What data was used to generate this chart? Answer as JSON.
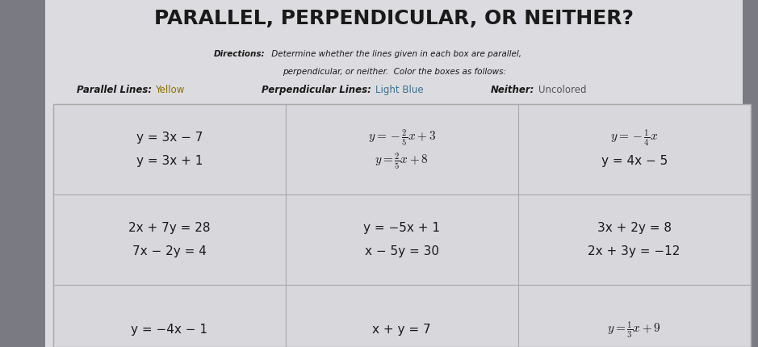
{
  "title": "PARALLEL, PERPENDICULAR, OR NEITHER?",
  "directions_bold": "Directions:",
  "directions_rest": " Determine whether the lines given in each box are parallel,",
  "directions_line2": "perpendicular, or neither.  Color the boxes as follows:",
  "bg_color": "#7a7a82",
  "paper_color": "#dcdce0",
  "cell_color_default": "#d8d8dc",
  "legend_parallel_label": "Parallel Lines:",
  "legend_parallel_val": " Yellow",
  "legend_perp_label": "Perpendicular Lines:",
  "legend_perp_val": " Light Blue",
  "legend_neither_label": "Neither:",
  "legend_neither_val": " Uncolored",
  "cells": [
    {
      "row": 0,
      "col": 0,
      "line1": "y = 3x − 7",
      "line2": "y = 3x + 1",
      "color": "#d8d8dc",
      "underline1": true,
      "underline2": true
    },
    {
      "row": 0,
      "col": 1,
      "line1": "$y = -\\frac{2}{5}x + 3$",
      "line2": "$y = \\frac{2}{5}x + 8$",
      "color": "#d8d8dc",
      "underline1": false,
      "underline2": false
    },
    {
      "row": 0,
      "col": 2,
      "line1": "$y = -\\frac{1}{4}x$",
      "line2": "y = 4x − 5",
      "color": "#d8d8dc",
      "underline1": false,
      "underline2": false
    },
    {
      "row": 1,
      "col": 0,
      "line1": "2x + 7y = 28",
      "line2": "7x − 2y = 4",
      "color": "#d8d8dc",
      "underline1": false,
      "underline2": false
    },
    {
      "row": 1,
      "col": 1,
      "line1": "y = −5x + 1",
      "line2": "x − 5y = 30",
      "color": "#d8d8dc",
      "underline1": false,
      "underline2": false
    },
    {
      "row": 1,
      "col": 2,
      "line1": "3x + 2y = 8",
      "line2": "2x + 3y = −12",
      "color": "#d8d8dc",
      "underline1": false,
      "underline2": false
    },
    {
      "row": 2,
      "col": 0,
      "line1": "y = −4x − 1",
      "line2": "",
      "color": "#d8d8dc",
      "underline1": false,
      "underline2": false
    },
    {
      "row": 2,
      "col": 1,
      "line1": "x + y = 7",
      "line2": "",
      "color": "#d8d8dc",
      "underline1": false,
      "underline2": false
    },
    {
      "row": 2,
      "col": 2,
      "line1": "$y = \\frac{1}{3}x + 9$",
      "line2": "",
      "color": "#d8d8dc",
      "underline1": false,
      "underline2": false
    }
  ],
  "text_color": "#1a1a1a",
  "title_fontsize": 18,
  "dir_fontsize": 7.5,
  "legend_fontsize": 8.5,
  "cell_fontsize": 11,
  "cell_fontsize_math": 12
}
